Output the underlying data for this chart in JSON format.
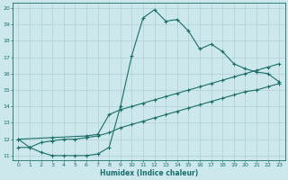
{
  "xlabel": "Humidex (Indice chaleur)",
  "bg_color": "#cce8ec",
  "grid_color": "#b0d0d6",
  "line_color": "#1a6e6a",
  "xlim": [
    -0.5,
    23.5
  ],
  "ylim": [
    10.7,
    20.3
  ],
  "yticks": [
    11,
    12,
    13,
    14,
    15,
    16,
    17,
    18,
    19,
    20
  ],
  "xticks": [
    0,
    1,
    2,
    3,
    4,
    5,
    6,
    7,
    8,
    9,
    10,
    11,
    12,
    13,
    14,
    15,
    16,
    17,
    18,
    19,
    20,
    21,
    22,
    23
  ],
  "line1_x": [
    0,
    1,
    2,
    3,
    4,
    5,
    6,
    7,
    8,
    9,
    10,
    11,
    12,
    13,
    14,
    15,
    16,
    17,
    18,
    19,
    20,
    21,
    22,
    23
  ],
  "line1_y": [
    12.0,
    11.5,
    11.2,
    11.0,
    11.0,
    11.0,
    11.0,
    11.1,
    11.5,
    14.0,
    17.1,
    19.4,
    19.9,
    19.2,
    19.3,
    18.6,
    17.5,
    17.8,
    17.35,
    16.6,
    16.3,
    16.1,
    16.0,
    15.5
  ],
  "line2_x": [
    0,
    3,
    6,
    7,
    8,
    9,
    10,
    11,
    12,
    13,
    14,
    15,
    16,
    17,
    18,
    19,
    20,
    21,
    22,
    23
  ],
  "line2_y": [
    12.0,
    12.1,
    12.2,
    12.3,
    13.5,
    13.8,
    14.0,
    14.2,
    14.4,
    14.6,
    14.8,
    15.0,
    15.2,
    15.4,
    15.6,
    15.8,
    16.0,
    16.2,
    16.4,
    16.6
  ],
  "line3_x": [
    0,
    1,
    2,
    3,
    4,
    5,
    6,
    7,
    8,
    9,
    10,
    11,
    12,
    13,
    14,
    15,
    16,
    17,
    18,
    19,
    20,
    21,
    22,
    23
  ],
  "line3_y": [
    11.5,
    11.5,
    11.8,
    11.9,
    12.0,
    12.0,
    12.1,
    12.2,
    12.4,
    12.7,
    12.9,
    13.1,
    13.3,
    13.5,
    13.7,
    13.9,
    14.1,
    14.3,
    14.5,
    14.7,
    14.9,
    15.0,
    15.2,
    15.4
  ]
}
